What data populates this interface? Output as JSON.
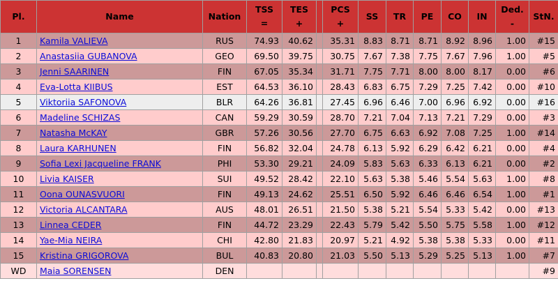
{
  "table": {
    "header": [
      {
        "label": "Pl."
      },
      {
        "label": "Name"
      },
      {
        "label": "Nation"
      },
      {
        "label": "TSS",
        "sub": "="
      },
      {
        "label": "TES",
        "sub": "+"
      },
      {
        "label": "PCS",
        "sub": "+"
      },
      {
        "label": "SS"
      },
      {
        "label": "TR"
      },
      {
        "label": "PE"
      },
      {
        "label": "CO"
      },
      {
        "label": "IN"
      },
      {
        "label": "Ded.",
        "sub": "-"
      },
      {
        "label": "StN."
      }
    ],
    "rows": [
      [
        "1",
        "Kamila VALIEVA",
        "RUS",
        "74.93",
        "40.62",
        "35.31",
        "8.83",
        "8.71",
        "8.71",
        "8.92",
        "8.96",
        "1.00",
        "#15"
      ],
      [
        "2",
        "Anastasiia GUBANOVA",
        "GEO",
        "69.50",
        "39.75",
        "30.75",
        "7.67",
        "7.38",
        "7.75",
        "7.67",
        "7.96",
        "1.00",
        "#5"
      ],
      [
        "3",
        "Jenni SAARINEN",
        "FIN",
        "67.05",
        "35.34",
        "31.71",
        "7.75",
        "7.71",
        "8.00",
        "8.00",
        "8.17",
        "0.00",
        "#6"
      ],
      [
        "4",
        "Eva-Lotta KIIBUS",
        "EST",
        "64.53",
        "36.10",
        "28.43",
        "6.83",
        "6.75",
        "7.29",
        "7.25",
        "7.42",
        "0.00",
        "#10"
      ],
      [
        "5",
        "Viktoriia SAFONOVA",
        "BLR",
        "64.26",
        "36.81",
        "27.45",
        "6.96",
        "6.46",
        "7.00",
        "6.96",
        "6.92",
        "0.00",
        "#16"
      ],
      [
        "6",
        "Madeline SCHIZAS",
        "CAN",
        "59.29",
        "30.59",
        "28.70",
        "7.21",
        "7.04",
        "7.13",
        "7.21",
        "7.29",
        "0.00",
        "#3"
      ],
      [
        "7",
        "Natasha McKAY",
        "GBR",
        "57.26",
        "30.56",
        "27.70",
        "6.75",
        "6.63",
        "6.92",
        "7.08",
        "7.25",
        "1.00",
        "#14"
      ],
      [
        "8",
        "Laura KARHUNEN",
        "FIN",
        "56.82",
        "32.04",
        "24.78",
        "6.13",
        "5.92",
        "6.29",
        "6.42",
        "6.21",
        "0.00",
        "#4"
      ],
      [
        "9",
        "Sofia Lexi Jacqueline FRANK",
        "PHI",
        "53.30",
        "29.21",
        "24.09",
        "5.83",
        "5.63",
        "6.33",
        "6.13",
        "6.21",
        "0.00",
        "#2"
      ],
      [
        "10",
        "Livia KAISER",
        "SUI",
        "49.52",
        "28.42",
        "22.10",
        "5.63",
        "5.38",
        "5.46",
        "5.54",
        "5.63",
        "1.00",
        "#8"
      ],
      [
        "11",
        "Oona OUNASVUORI",
        "FIN",
        "49.13",
        "24.62",
        "25.51",
        "6.50",
        "5.92",
        "6.46",
        "6.46",
        "6.54",
        "1.00",
        "#1"
      ],
      [
        "12",
        "Victoria ALCANTARA",
        "AUS",
        "48.01",
        "26.51",
        "21.50",
        "5.38",
        "5.21",
        "5.54",
        "5.33",
        "5.42",
        "0.00",
        "#13"
      ],
      [
        "13",
        "Linnea CEDER",
        "FIN",
        "44.72",
        "23.29",
        "22.43",
        "5.79",
        "5.42",
        "5.50",
        "5.75",
        "5.58",
        "1.00",
        "#12"
      ],
      [
        "14",
        "Yae-Mia NEIRA",
        "CHI",
        "42.80",
        "21.83",
        "20.97",
        "5.21",
        "4.92",
        "5.38",
        "5.38",
        "5.33",
        "0.00",
        "#11"
      ],
      [
        "15",
        "Kristina GRIGOROVA",
        "BUL",
        "40.83",
        "20.80",
        "21.03",
        "5.50",
        "5.13",
        "5.29",
        "5.25",
        "5.13",
        "1.00",
        "#7"
      ],
      [
        "WD",
        "Maia SORENSEN",
        "DEN",
        null,
        null,
        null,
        null,
        null,
        null,
        null,
        null,
        null,
        "#9"
      ]
    ],
    "row_colors": [
      "#cc9999",
      "#ffcccc",
      "#cc9999",
      "#ffcccc",
      "#eeeeee",
      "#ffcccc",
      "#cc9999",
      "#ffcccc",
      "#cc9999",
      "#ffcccc",
      "#cc9999",
      "#ffcccc",
      "#cc9999",
      "#ffcccc",
      "#cc9999",
      "#ffdddd"
    ],
    "header_color": "#cc3333"
  }
}
